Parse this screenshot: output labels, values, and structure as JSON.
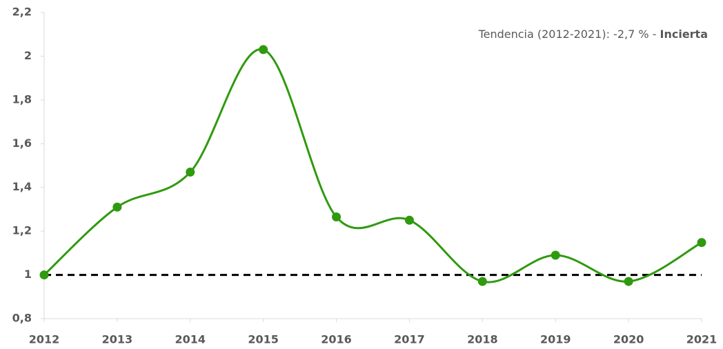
{
  "chart_data": {
    "type": "line",
    "annotation": "Tendencia (2012-2021): -2,7 % - ",
    "annotation_emphasis": "Incierta",
    "categories": [
      "2012",
      "2013",
      "2014",
      "2015",
      "2016",
      "2017",
      "2018",
      "2019",
      "2020",
      "2021"
    ],
    "series": [
      {
        "color": "#2f9a0e",
        "values": [
          1.0,
          1.31,
          1.47,
          2.03,
          1.265,
          1.25,
          0.97,
          1.09,
          0.97,
          1.148
        ]
      }
    ],
    "reference_line": 1,
    "ylim": [
      0.8,
      2.2
    ],
    "yticks": [
      {
        "value": 0.8,
        "label": "0,8"
      },
      1,
      {
        "value": 1.2,
        "label": "1,2"
      },
      {
        "value": 1.4,
        "label": "1,4"
      },
      {
        "value": 1.6,
        "label": "1,6"
      },
      {
        "value": 1.8,
        "label": "1,8"
      },
      2,
      {
        "value": 2.2,
        "label": "2,2"
      }
    ],
    "smooth": true
  }
}
